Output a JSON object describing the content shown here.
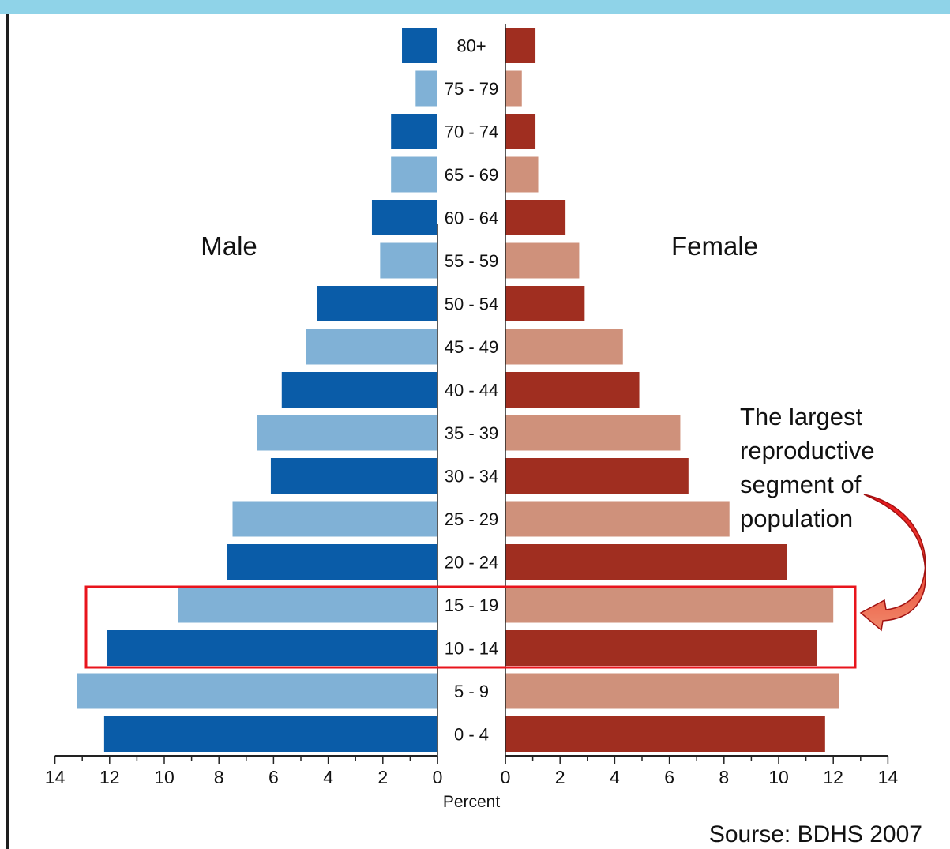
{
  "chart_data": {
    "type": "bar",
    "orientation": "horizontal-population-pyramid",
    "categories": [
      "80+",
      "75 - 79",
      "70 - 74",
      "65 - 69",
      "60 - 64",
      "55 - 59",
      "50 - 54",
      "45 - 49",
      "40 - 44",
      "35 - 39",
      "30 - 34",
      "25 - 29",
      "20 - 24",
      "15 - 19",
      "10 - 14",
      "5 - 9",
      "0 - 4"
    ],
    "series": [
      {
        "name": "Male",
        "values": [
          1.3,
          0.8,
          1.7,
          1.7,
          2.4,
          2.1,
          4.4,
          4.8,
          5.7,
          6.6,
          6.1,
          7.5,
          7.7,
          9.5,
          12.1,
          13.2,
          12.2
        ]
      },
      {
        "name": "Female",
        "values": [
          1.1,
          0.6,
          1.1,
          1.2,
          2.2,
          2.7,
          2.9,
          4.3,
          4.9,
          6.4,
          6.7,
          8.2,
          10.3,
          12.0,
          11.4,
          12.2,
          11.7
        ]
      }
    ],
    "xticks": [
      0,
      2,
      4,
      6,
      8,
      10,
      12,
      14
    ],
    "xlim": [
      0,
      14
    ],
    "xlabel": "Percent",
    "annotation": "The largest reproductive segment of population",
    "highlighted_groups": [
      "15 - 19",
      "10 - 14"
    ],
    "source": "Sourse: BDHS 2007",
    "colors": {
      "male_dark": "#0a5ca8",
      "male_light": "#80b1d6",
      "female_dark": "#a02e20",
      "female_light": "#cf917b",
      "highlight": "#e8141c",
      "arrow": "#e8141c",
      "top_bar": "#8fd3e8"
    }
  }
}
